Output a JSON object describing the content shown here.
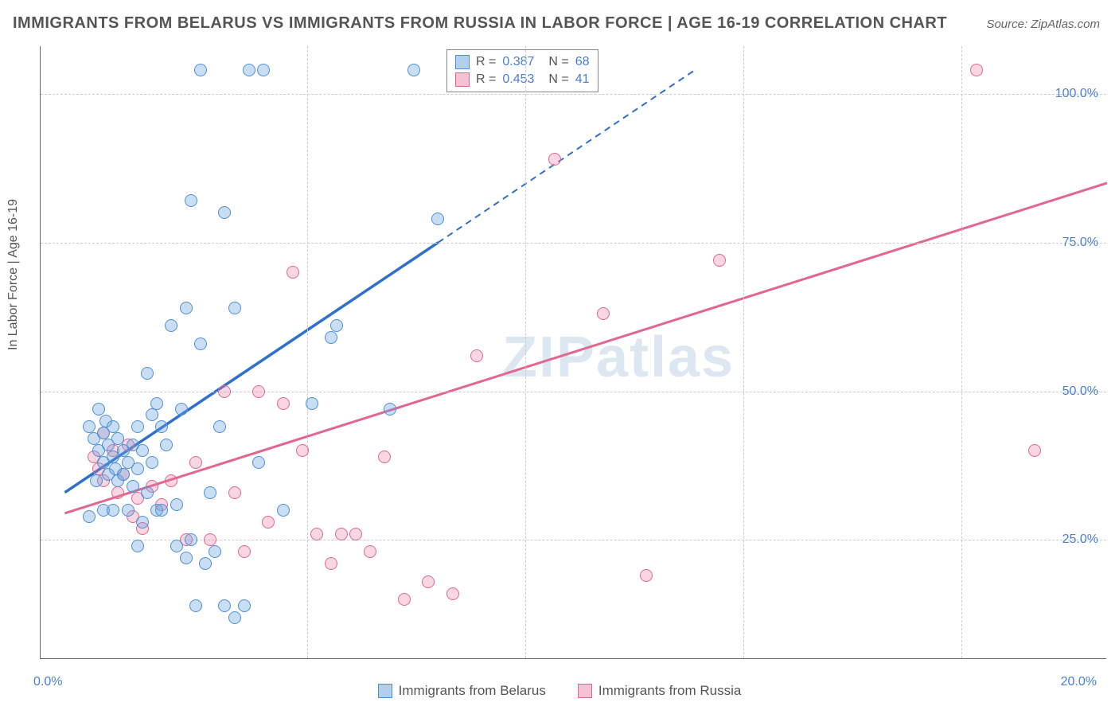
{
  "title": "IMMIGRANTS FROM BELARUS VS IMMIGRANTS FROM RUSSIA IN LABOR FORCE | AGE 16-19 CORRELATION CHART",
  "source": "Source: ZipAtlas.com",
  "ylabel": "In Labor Force | Age 16-19",
  "watermark": "ZIPatlas",
  "chart": {
    "type": "scatter",
    "x_range": [
      -1,
      21
    ],
    "y_range": [
      5,
      108
    ],
    "x_ticks": [
      0,
      20
    ],
    "x_tick_labels": [
      "0.0%",
      "20.0%"
    ],
    "y_ticks": [
      25,
      50,
      75,
      100
    ],
    "y_tick_labels": [
      "25.0%",
      "50.0%",
      "75.0%",
      "100.0%"
    ],
    "grid_x": [
      4.5,
      9.0,
      13.5,
      18.0
    ],
    "colors": {
      "belarus_fill": "rgba(102,160,220,0.35)",
      "belarus_stroke": "#4a90d9",
      "russia_fill": "rgba(233,120,160,0.30)",
      "russia_stroke": "#e2668f",
      "blue_line": "#2e6fd0",
      "pink_line": "#e2668f",
      "value_color": "#4a7fd6"
    },
    "legend_stats": [
      {
        "series": "belarus",
        "R_label": "R =",
        "R": "0.387",
        "N_label": "N =",
        "N": "68"
      },
      {
        "series": "russia",
        "R_label": "R =",
        "R": "0.453",
        "N_label": "N =",
        "N": "41"
      }
    ],
    "bottom_legend": [
      {
        "series": "belarus",
        "label": "Immigrants from Belarus"
      },
      {
        "series": "russia",
        "label": "Immigrants from Russia"
      }
    ],
    "trend_lines": {
      "belarus": {
        "x1": -0.5,
        "y1": 33,
        "x2_solid": 7.2,
        "y2_solid": 75,
        "x2_dash": 12.5,
        "y2_dash": 104
      },
      "russia": {
        "x1": -0.5,
        "y1": 29.5,
        "x2": 21,
        "y2": 85
      }
    },
    "points_belarus": [
      [
        0.0,
        44
      ],
      [
        0.1,
        42
      ],
      [
        0.2,
        40
      ],
      [
        0.2,
        47
      ],
      [
        0.3,
        43
      ],
      [
        0.3,
        38
      ],
      [
        0.35,
        45
      ],
      [
        0.4,
        41
      ],
      [
        0.4,
        36
      ],
      [
        0.5,
        39
      ],
      [
        0.5,
        44
      ],
      [
        0.55,
        37
      ],
      [
        0.6,
        42
      ],
      [
        0.6,
        35
      ],
      [
        0.7,
        40
      ],
      [
        0.7,
        36
      ],
      [
        0.8,
        38
      ],
      [
        0.8,
        30
      ],
      [
        0.9,
        34
      ],
      [
        0.9,
        41
      ],
      [
        1.0,
        37
      ],
      [
        1.0,
        44
      ],
      [
        1.1,
        40
      ],
      [
        1.1,
        28
      ],
      [
        1.2,
        53
      ],
      [
        1.2,
        33
      ],
      [
        1.3,
        46
      ],
      [
        1.3,
        38
      ],
      [
        1.4,
        48
      ],
      [
        1.4,
        30
      ],
      [
        1.5,
        44
      ],
      [
        1.6,
        41
      ],
      [
        1.7,
        61
      ],
      [
        1.8,
        31
      ],
      [
        1.8,
        24
      ],
      [
        1.9,
        47
      ],
      [
        2.0,
        64
      ],
      [
        2.0,
        22
      ],
      [
        2.1,
        25
      ],
      [
        2.1,
        82
      ],
      [
        2.2,
        14
      ],
      [
        2.3,
        58
      ],
      [
        2.3,
        104
      ],
      [
        2.4,
        21
      ],
      [
        2.6,
        23
      ],
      [
        2.8,
        14
      ],
      [
        2.8,
        80
      ],
      [
        3.0,
        12
      ],
      [
        3.0,
        64
      ],
      [
        3.2,
        14
      ],
      [
        3.3,
        104
      ],
      [
        3.6,
        104
      ],
      [
        0.0,
        29
      ],
      [
        4.6,
        48
      ],
      [
        5.0,
        59
      ],
      [
        5.1,
        61
      ],
      [
        6.2,
        47
      ],
      [
        6.7,
        104
      ],
      [
        7.2,
        79
      ],
      [
        0.3,
        30
      ],
      [
        0.5,
        30
      ],
      [
        1.0,
        24
      ],
      [
        1.5,
        30
      ],
      [
        2.5,
        33
      ],
      [
        2.7,
        44
      ],
      [
        3.5,
        38
      ],
      [
        4.0,
        30
      ],
      [
        0.15,
        35
      ]
    ],
    "points_russia": [
      [
        0.1,
        39
      ],
      [
        0.2,
        37
      ],
      [
        0.3,
        43
      ],
      [
        0.3,
        35
      ],
      [
        0.5,
        40
      ],
      [
        0.6,
        33
      ],
      [
        0.7,
        36
      ],
      [
        0.8,
        41
      ],
      [
        0.9,
        29
      ],
      [
        1.0,
        32
      ],
      [
        1.1,
        27
      ],
      [
        1.3,
        34
      ],
      [
        1.5,
        31
      ],
      [
        1.7,
        35
      ],
      [
        2.0,
        25
      ],
      [
        2.2,
        38
      ],
      [
        2.5,
        25
      ],
      [
        2.8,
        50
      ],
      [
        3.0,
        33
      ],
      [
        3.2,
        23
      ],
      [
        3.5,
        50
      ],
      [
        3.7,
        28
      ],
      [
        4.0,
        48
      ],
      [
        4.2,
        70
      ],
      [
        4.4,
        40
      ],
      [
        4.7,
        26
      ],
      [
        5.0,
        21
      ],
      [
        5.2,
        26
      ],
      [
        5.5,
        26
      ],
      [
        5.8,
        23
      ],
      [
        6.1,
        39
      ],
      [
        6.5,
        15
      ],
      [
        7.0,
        18
      ],
      [
        7.5,
        16
      ],
      [
        8.0,
        56
      ],
      [
        9.6,
        89
      ],
      [
        10.6,
        63
      ],
      [
        11.5,
        19
      ],
      [
        13.0,
        72
      ],
      [
        18.3,
        104
      ],
      [
        19.5,
        40
      ]
    ]
  }
}
